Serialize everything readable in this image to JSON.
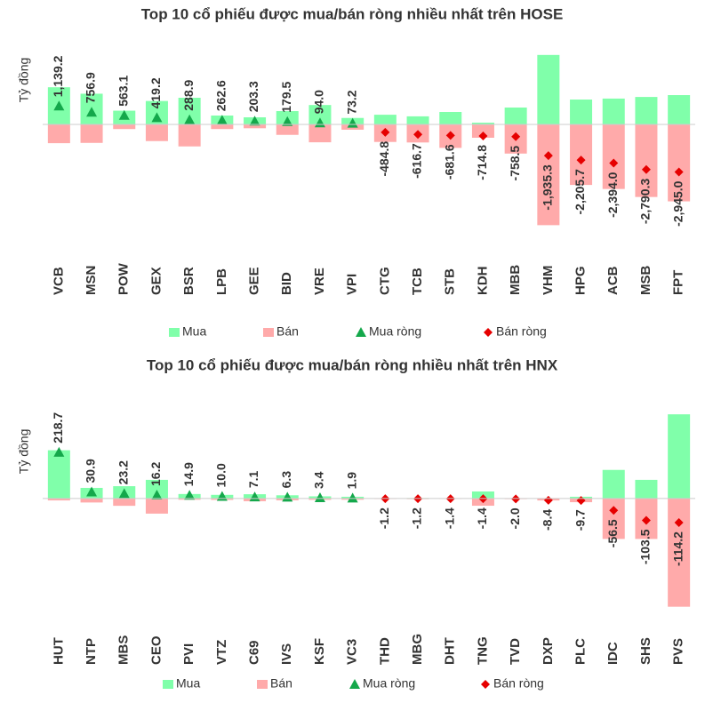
{
  "chart_data": [
    {
      "type": "bar",
      "title": "Top 10 cổ phiếu được mua/bán ròng nhiều nhất trên HOSE",
      "y_label": "Tỷ đồng",
      "categories": [
        "VCB",
        "MSN",
        "POW",
        "GEX",
        "BSR",
        "LPB",
        "GEE",
        "BID",
        "VRE",
        "VPI",
        "CTG",
        "TCB",
        "STB",
        "KDH",
        "MBB",
        "VHM",
        "HPG",
        "ACB",
        "MSB",
        "FPT"
      ],
      "ylim": [
        -8250,
        5500
      ],
      "series": [
        {
          "name": "Mua",
          "color": "#80ffaa",
          "values": [
            2300,
            1900,
            850,
            1450,
            1650,
            550,
            440,
            825,
            1200,
            400,
            600,
            500,
            770,
            110,
            1045,
            4300,
            1540,
            1600,
            1700,
            1815
          ]
        },
        {
          "name": "Bán",
          "color": "#ffaaaa",
          "values": [
            -1160.8,
            -1143.1,
            -286.9,
            -1030.8,
            -1361.1,
            -287.4,
            -236.7,
            -645.5,
            -1106,
            -326.8,
            -1084.8,
            -1116.7,
            -1451.6,
            -824.8,
            -1803.5,
            -6235.3,
            -3745.7,
            -3994,
            -4490.3,
            -4760
          ]
        },
        {
          "name": "Mua ròng",
          "color": "#14a84b",
          "values": [
            1139.2,
            756.9,
            563.1,
            419.2,
            288.9,
            262.6,
            203.3,
            179.5,
            94.0,
            73.2,
            null,
            null,
            null,
            null,
            null,
            null,
            null,
            null,
            null,
            null
          ],
          "value_labels": [
            "1,139.2",
            "756.9",
            "563.1",
            "419.2",
            "288.9",
            "262.6",
            "203.3",
            "179.5",
            "94.0",
            "73.2",
            null,
            null,
            null,
            null,
            null,
            null,
            null,
            null,
            null,
            null
          ]
        },
        {
          "name": "Bán ròng",
          "color": "#e60000",
          "values": [
            null,
            null,
            null,
            null,
            null,
            null,
            null,
            null,
            null,
            null,
            -484.8,
            -616.7,
            -681.6,
            -714.8,
            -758.5,
            -1935.3,
            -2205.7,
            -2394.0,
            -2790.3,
            -2945.0
          ],
          "value_labels": [
            null,
            null,
            null,
            null,
            null,
            null,
            null,
            null,
            null,
            null,
            "-484.8",
            "-616.7",
            "-681.6",
            "-714.8",
            "-758.5",
            "-1,935.3",
            "-2,205.7",
            "-2,394.0",
            "-2,790.3",
            "-2,945.0"
          ]
        }
      ]
    },
    {
      "type": "bar",
      "title": "Top 10 cổ phiếu được mua/bán ròng nhiều nhất trên HNX",
      "y_label": "Tỷ đồng",
      "categories": [
        "HUT",
        "NTP",
        "MBS",
        "CEO",
        "PVI",
        "VTZ",
        "C69",
        "IVS",
        "KSF",
        "VC3",
        "THD",
        "MBG",
        "DHT",
        "TNG",
        "TVD",
        "DXP",
        "PLC",
        "IDC",
        "SHS",
        "PVS"
      ],
      "ylim": [
        -585,
        445
      ],
      "series": [
        {
          "name": "Mua",
          "color": "#80ffaa",
          "values": [
            228,
            50,
            58,
            88,
            21,
            17,
            20,
            15,
            10,
            8,
            1,
            2,
            0.5,
            33,
            1,
            1,
            8,
            135,
            88,
            398
          ]
        },
        {
          "name": "Bán",
          "color": "#ffaaaa",
          "values": [
            -9.3,
            -19.1,
            -34.8,
            -71.8,
            -6.1,
            -7,
            -12.9,
            -8.7,
            -6.6,
            -6.1,
            -2.2,
            -3.2,
            -1.9,
            -34.4,
            -3,
            -9.4,
            -17.7,
            -191.5,
            -191.5,
            -512.2
          ]
        },
        {
          "name": "Mua ròng",
          "color": "#14a84b",
          "values": [
            218.7,
            30.9,
            23.2,
            16.2,
            14.9,
            10.0,
            7.1,
            6.3,
            3.4,
            1.9,
            null,
            null,
            null,
            null,
            null,
            null,
            null,
            null,
            null,
            null
          ],
          "value_labels": [
            "218.7",
            "30.9",
            "23.2",
            "16.2",
            "14.9",
            "10.0",
            "7.1",
            "6.3",
            "3.4",
            "1.9",
            null,
            null,
            null,
            null,
            null,
            null,
            null,
            null,
            null,
            null
          ]
        },
        {
          "name": "Bán ròng",
          "color": "#e60000",
          "values": [
            null,
            null,
            null,
            null,
            null,
            null,
            null,
            null,
            null,
            null,
            -1.2,
            -1.2,
            -1.4,
            -1.4,
            -2.0,
            -8.4,
            -9.7,
            -56.5,
            -103.5,
            -114.2
          ],
          "value_labels": [
            null,
            null,
            null,
            null,
            null,
            null,
            null,
            null,
            null,
            null,
            "-1.2",
            "-1.2",
            "-1.4",
            "-1.4",
            "-2.0",
            "-8.4",
            "-9.7",
            "-56.5",
            "-103.5",
            "-114.2"
          ]
        }
      ]
    }
  ]
}
